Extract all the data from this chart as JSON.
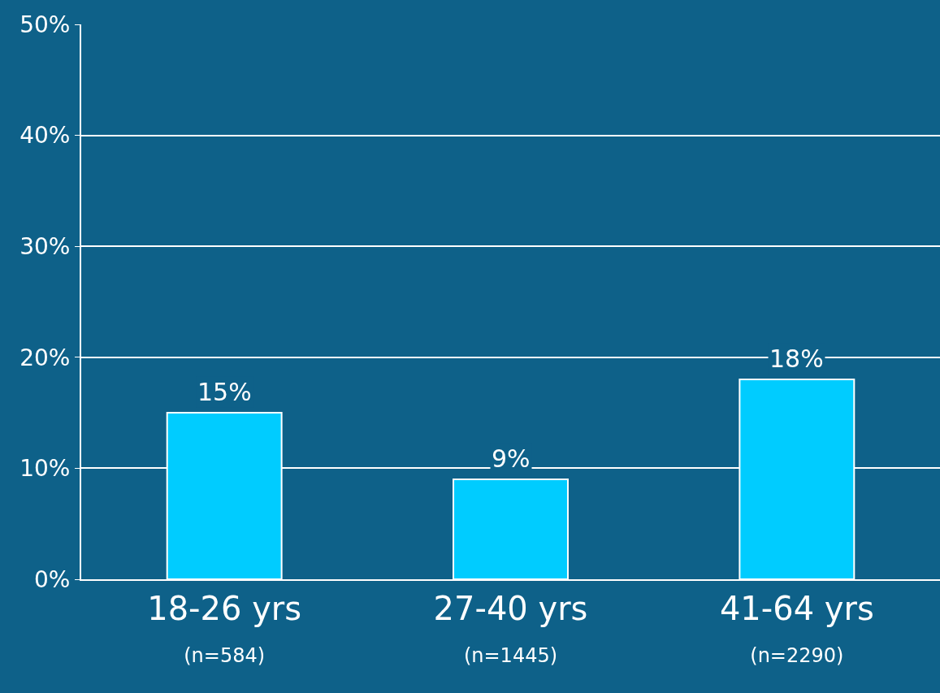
{
  "chart_data": {
    "type": "bar",
    "categories": [
      "18-26 yrs\n(n=584)",
      "27-40 yrs\n(n=1445)",
      "41-64 yrs\n(n=2290)"
    ],
    "values": [
      15,
      9,
      18
    ],
    "value_labels": [
      "15%",
      "9%",
      "18%"
    ],
    "color": "#00ccff",
    "ylim": [
      0,
      50
    ],
    "yticks": [
      {
        "value": 0,
        "label": "0%"
      },
      {
        "value": 10,
        "label": "10%"
      },
      {
        "value": 20,
        "label": "20%"
      },
      {
        "value": 30,
        "label": "30%"
      },
      {
        "value": 40,
        "label": "40%"
      },
      {
        "value": 50,
        "label": "50%"
      }
    ],
    "grid": "y"
  }
}
